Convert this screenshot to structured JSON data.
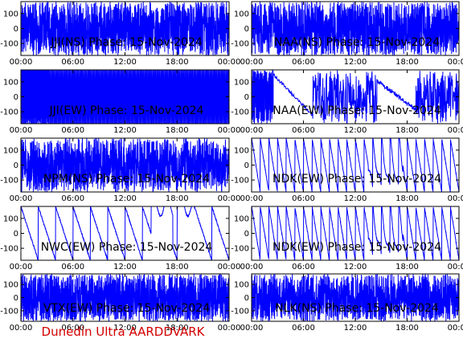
{
  "footer": "Dunedin Ultra AARDDVARK",
  "colors": {
    "trace": "#0000ff",
    "axis": "#000000",
    "footer": "#d40000",
    "background": "#ffffff"
  },
  "chart_data": [
    {
      "type": "line",
      "title": "JJI(NS) Phase: 15-Nov-2024",
      "pattern": "noisy",
      "density": 0.85,
      "ylim": [
        -180,
        180
      ],
      "yticks": [
        100,
        0,
        -100
      ],
      "xticks": [
        "00:00",
        "06:00",
        "12:00",
        "18:00",
        "00:00"
      ],
      "xlim_hours": [
        0,
        24
      ]
    },
    {
      "type": "line",
      "title": "NAA(NS) Phase: 15-Nov-2024",
      "pattern": "noisy",
      "density": 0.8,
      "ylim": [
        -180,
        180
      ],
      "yticks": [
        100,
        0,
        -100
      ],
      "xticks": [
        "00:00",
        "06:00",
        "12:00",
        "18:00",
        "00:00"
      ],
      "xlim_hours": [
        0,
        24
      ]
    },
    {
      "type": "line",
      "title": "JJI(EW) Phase: 15-Nov-2024",
      "pattern": "solid",
      "note": "filled blue block, trace visible only 00:00-03:00",
      "ylim": [
        -180,
        180
      ],
      "yticks": [
        100,
        0,
        -100
      ],
      "xticks": [
        "00:00",
        "06:00",
        "12:00",
        "18:00",
        "00:00"
      ],
      "xlim_hours": [
        0,
        24
      ]
    },
    {
      "type": "line",
      "title": "NAA(EW) Phase: 15-Nov-2024",
      "pattern": "mixed-ew",
      "ylim": [
        -180,
        180
      ],
      "yticks": [
        100,
        0,
        -100
      ],
      "xticks": [
        "00:00",
        "06:00",
        "12:00",
        "18:00",
        "00:00"
      ],
      "xlim_hours": [
        0,
        24
      ]
    },
    {
      "type": "line",
      "title": "NPM(NS) Phase: 15-Nov-2024",
      "pattern": "noisy",
      "density": 0.7,
      "ylim": [
        -180,
        180
      ],
      "yticks": [
        100,
        0,
        -100
      ],
      "xticks": [
        "00:00",
        "06:00",
        "12:00",
        "18:00",
        "00:00"
      ],
      "xlim_hours": [
        0,
        24
      ]
    },
    {
      "type": "line",
      "title": "NDK(EW) Phase: 15-Nov-2024",
      "pattern": "sawtooth",
      "period_hours": 1.0,
      "ylim": [
        -180,
        180
      ],
      "yticks": [
        100,
        0,
        -100
      ],
      "xticks": [
        "00:00",
        "06:00",
        "12:00",
        "18:00",
        "00:00"
      ],
      "xlim_hours": [
        0,
        24
      ]
    },
    {
      "type": "line",
      "title": "NWC(EW) Phase: 15-Nov-2024",
      "pattern": "sawtooth-sparse",
      "period_hours": 2.0,
      "ylim": [
        -180,
        180
      ],
      "yticks": [
        100,
        0,
        -100
      ],
      "xticks": [
        "00:00",
        "06:00",
        "12:00",
        "18:00",
        "00:00"
      ],
      "xlim_hours": [
        0,
        24
      ]
    },
    {
      "type": "line",
      "title": "NDK(EW) Phase: 15-Nov-2024",
      "pattern": "sawtooth",
      "period_hours": 1.0,
      "ylim": [
        -180,
        180
      ],
      "yticks": [
        100,
        0,
        -100
      ],
      "xticks": [
        "00:00",
        "06:00",
        "12:00",
        "18:00",
        "00:00"
      ],
      "xlim_hours": [
        0,
        24
      ]
    },
    {
      "type": "line",
      "title": "VTX(EW) Phase: 15-Nov-2024",
      "pattern": "noisy",
      "density": 0.95,
      "ylim": [
        -180,
        180
      ],
      "yticks": [
        100,
        0,
        -100
      ],
      "xticks": [
        "00:00",
        "06:00",
        "12:00",
        "18:00",
        "00:00"
      ],
      "xlim_hours": [
        0,
        24
      ]
    },
    {
      "type": "line",
      "title": "NLK(NS) Phase: 15-Nov-2024",
      "pattern": "noisy",
      "density": 0.7,
      "ylim": [
        -180,
        180
      ],
      "yticks": [
        100,
        0,
        -100
      ],
      "xticks": [
        "00:00",
        "06:00",
        "12:00",
        "18:00",
        "00:00"
      ],
      "xlim_hours": [
        0,
        24
      ]
    }
  ]
}
